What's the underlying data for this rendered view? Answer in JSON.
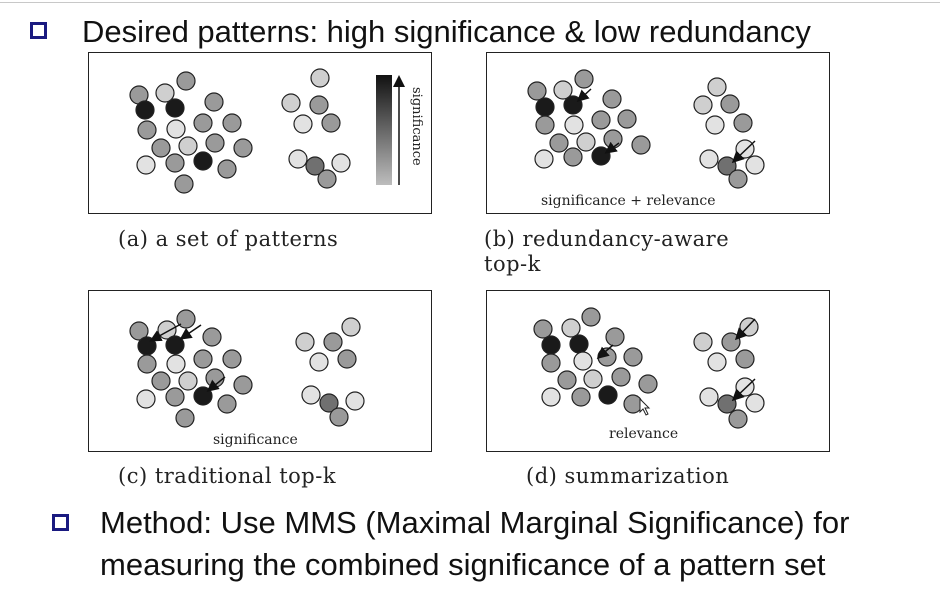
{
  "heading": {
    "text": "Desired patterns: high significance & low redundancy",
    "bullet_icon": "hollow-square-bullet"
  },
  "panels": [
    {
      "id": "a",
      "caption": "(a) a set of patterns",
      "inner_label": "",
      "bar_label": "significance"
    },
    {
      "id": "b",
      "caption_line1": "(b)    redundancy-aware",
      "caption_line2": "top-k",
      "inner_label": "significance + relevance"
    },
    {
      "id": "c",
      "caption": "(c) traditional top-k",
      "inner_label": "significance"
    },
    {
      "id": "d",
      "caption": "(d) summarization",
      "inner_label": "relevance"
    }
  ],
  "method": {
    "line1": "Method:  Use MMS (Maximal Marginal Significance) for",
    "line2": "measuring the combined significance of a pattern set",
    "bullet_icon": "hollow-square-bullet"
  },
  "colors": {
    "bullet": "#1a1a80",
    "dark": "#1a1a1a",
    "mid_dark": "#707070",
    "mid": "#9a9a9a",
    "light": "#cfcfcf",
    "lighter": "#e2e2e2"
  }
}
